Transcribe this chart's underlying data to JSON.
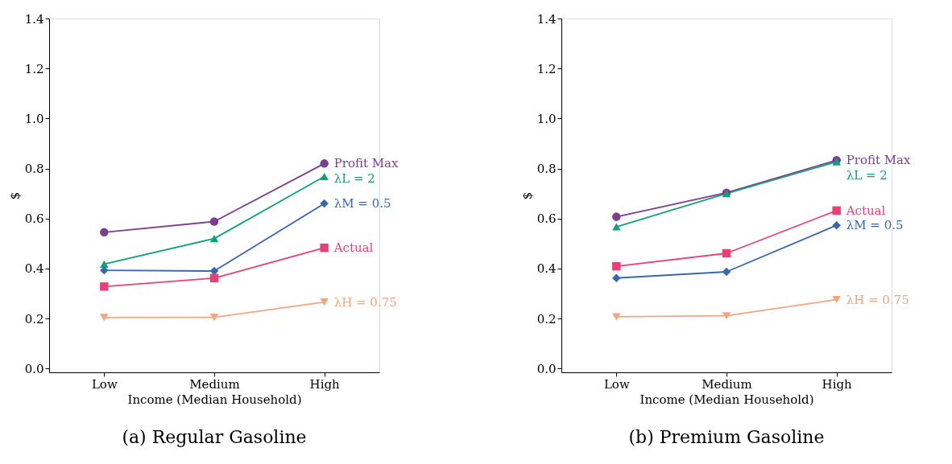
{
  "chart_data": [
    {
      "type": "line",
      "title": "(a) Regular Gasoline",
      "xlabel": "Income (Median Household)",
      "ylabel": "$",
      "categories": [
        "Low",
        "Medium",
        "High"
      ],
      "ylim": [
        -0.015,
        1.4
      ],
      "yticks": [
        {
          "value": 0,
          "label": "0.0"
        },
        0.2,
        0.4,
        0.6,
        0.8,
        {
          "value": 1,
          "label": "1.0"
        },
        1.2,
        1.4
      ],
      "grid": false,
      "legend": false,
      "line_style": "solid",
      "series": [
        {
          "name": "Profit Max",
          "color": "#7b3f8f",
          "marker": "circle",
          "values": [
            0.545,
            0.588,
            0.82
          ]
        },
        {
          "name": "λL = 2",
          "color": "#12a07a",
          "marker": "triangle",
          "values": [
            0.418,
            0.52,
            0.768
          ]
        },
        {
          "name": "λM = 0.5",
          "color": "#3a66b0",
          "marker": "diamond",
          "values": [
            0.393,
            0.39,
            0.66
          ]
        },
        {
          "name": "Actual",
          "color": "#e8417a",
          "marker": "square",
          "values": [
            0.328,
            0.362,
            0.483
          ]
        },
        {
          "name": "λH = 0.75",
          "color": "#f4a582",
          "marker": "triangle-down",
          "values": [
            0.204,
            0.205,
            0.266
          ]
        }
      ]
    },
    {
      "type": "line",
      "title": "(b) Premium Gasoline",
      "xlabel": "Income (Median Household)",
      "ylabel": "$",
      "categories": [
        "Low",
        "Medium",
        "High"
      ],
      "ylim": [
        -0.015,
        1.4
      ],
      "yticks": [
        {
          "value": 0,
          "label": "0.0"
        },
        0.2,
        0.4,
        0.6,
        0.8,
        {
          "value": 1,
          "label": "1.0"
        },
        1.2,
        1.4
      ],
      "grid": false,
      "legend": false,
      "line_style": "solid",
      "series": [
        {
          "name": "Profit Max",
          "color": "#7b3f8f",
          "marker": "circle",
          "values": [
            0.607,
            0.703,
            0.833
          ]
        },
        {
          "name": "λL = 2",
          "color": "#12a07a",
          "marker": "triangle",
          "values": [
            0.567,
            0.7,
            0.827
          ]
        },
        {
          "name": "Actual",
          "color": "#e8417a",
          "marker": "square",
          "values": [
            0.409,
            0.461,
            0.632
          ]
        },
        {
          "name": "λM = 0.5",
          "color": "#3a66b0",
          "marker": "diamond",
          "values": [
            0.362,
            0.387,
            0.573
          ]
        },
        {
          "name": "λH = 0.75",
          "color": "#f4a582",
          "marker": "triangle-down",
          "values": [
            0.207,
            0.211,
            0.276
          ]
        }
      ]
    }
  ]
}
